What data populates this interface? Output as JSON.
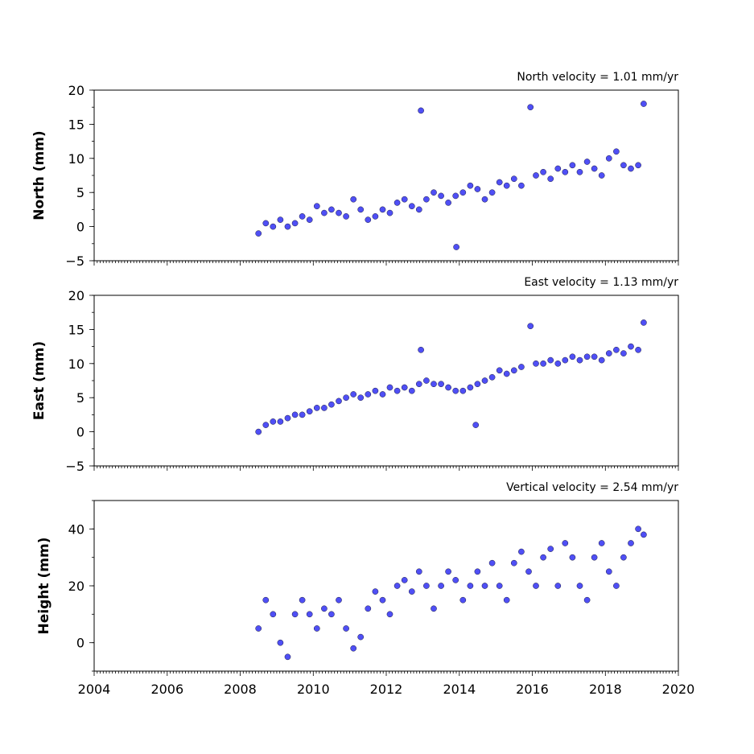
{
  "chart_data": [
    {
      "type": "scatter",
      "title": "North velocity = 1.01 mm/yr",
      "ylabel": "North (mm)",
      "xlim": [
        2004,
        2020
      ],
      "ylim": [
        -5,
        20
      ],
      "yticks": [
        -5,
        0,
        5,
        10,
        15,
        20
      ],
      "marker_color": "#4f4ff5",
      "series": [
        {
          "x": [
            2008.5,
            2008.7,
            2008.9,
            2009.1,
            2009.3,
            2009.5,
            2009.7,
            2009.9,
            2010.1,
            2010.3,
            2010.5,
            2010.7,
            2010.9,
            2011.1,
            2011.3,
            2011.5,
            2011.7,
            2011.9,
            2012.1,
            2012.3,
            2012.5,
            2012.7,
            2012.9,
            2012.95,
            2013.1,
            2013.3,
            2013.5,
            2013.7,
            2013.9,
            2013.92,
            2014.1,
            2014.3,
            2014.5,
            2014.7,
            2014.9,
            2015.1,
            2015.3,
            2015.5,
            2015.7,
            2015.95,
            2016.1,
            2016.3,
            2016.5,
            2016.7,
            2016.9,
            2017.1,
            2017.3,
            2017.5,
            2017.7,
            2017.9,
            2018.1,
            2018.3,
            2018.5,
            2018.7,
            2018.9,
            2019.05
          ],
          "y": [
            -1.0,
            0.5,
            0.0,
            1.0,
            0.0,
            0.5,
            1.5,
            1.0,
            3.0,
            2.0,
            2.5,
            2.0,
            1.5,
            4.0,
            2.5,
            1.0,
            1.5,
            2.5,
            2.0,
            3.5,
            4.0,
            3.0,
            2.5,
            17.0,
            4.0,
            5.0,
            4.5,
            3.5,
            4.5,
            -3.0,
            5.0,
            6.0,
            5.5,
            4.0,
            5.0,
            6.5,
            6.0,
            7.0,
            6.0,
            17.5,
            7.5,
            8.0,
            7.0,
            8.5,
            8.0,
            9.0,
            8.0,
            9.5,
            8.5,
            7.5,
            10.0,
            11.0,
            9.0,
            8.5,
            9.0,
            18.0
          ]
        }
      ]
    },
    {
      "type": "scatter",
      "title": "East velocity = 1.13 mm/yr",
      "ylabel": "East (mm)",
      "xlim": [
        2004,
        2020
      ],
      "ylim": [
        -5,
        20
      ],
      "yticks": [
        -5,
        0,
        5,
        10,
        15,
        20
      ],
      "marker_color": "#4f4ff5",
      "series": [
        {
          "x": [
            2008.5,
            2008.7,
            2008.9,
            2009.1,
            2009.3,
            2009.5,
            2009.7,
            2009.9,
            2010.1,
            2010.3,
            2010.5,
            2010.7,
            2010.9,
            2011.1,
            2011.3,
            2011.5,
            2011.7,
            2011.9,
            2012.1,
            2012.3,
            2012.5,
            2012.7,
            2012.9,
            2012.95,
            2013.1,
            2013.3,
            2013.5,
            2013.7,
            2013.9,
            2014.1,
            2014.3,
            2014.45,
            2014.5,
            2014.7,
            2014.9,
            2015.1,
            2015.3,
            2015.5,
            2015.7,
            2015.95,
            2016.1,
            2016.3,
            2016.5,
            2016.7,
            2016.9,
            2017.1,
            2017.3,
            2017.5,
            2017.7,
            2017.9,
            2018.1,
            2018.3,
            2018.5,
            2018.7,
            2018.9,
            2019.05
          ],
          "y": [
            0.0,
            1.0,
            1.5,
            1.5,
            2.0,
            2.5,
            2.5,
            3.0,
            3.5,
            3.5,
            4.0,
            4.5,
            5.0,
            5.5,
            5.0,
            5.5,
            6.0,
            5.5,
            6.5,
            6.0,
            6.5,
            6.0,
            7.0,
            12.0,
            7.5,
            7.0,
            7.0,
            6.5,
            6.0,
            6.0,
            6.5,
            1.0,
            7.0,
            7.5,
            8.0,
            9.0,
            8.5,
            9.0,
            9.5,
            15.5,
            10.0,
            10.0,
            10.5,
            10.0,
            10.5,
            11.0,
            10.5,
            11.0,
            11.0,
            10.5,
            11.5,
            12.0,
            11.5,
            12.5,
            12.0,
            16.0
          ]
        }
      ]
    },
    {
      "type": "scatter",
      "title": "Vertical velocity = 2.54 mm/yr",
      "ylabel": "Height (mm)",
      "xlim": [
        2004,
        2020
      ],
      "ylim": [
        -10,
        50
      ],
      "yticks": [
        0,
        20,
        40
      ],
      "xticks": [
        2004,
        2006,
        2008,
        2010,
        2012,
        2014,
        2016,
        2018,
        2020
      ],
      "marker_color": "#4f4ff5",
      "series": [
        {
          "x": [
            2008.5,
            2008.7,
            2008.9,
            2009.1,
            2009.3,
            2009.5,
            2009.7,
            2009.9,
            2010.1,
            2010.3,
            2010.5,
            2010.7,
            2010.9,
            2011.1,
            2011.3,
            2011.5,
            2011.7,
            2011.9,
            2012.1,
            2012.3,
            2012.5,
            2012.7,
            2012.9,
            2013.1,
            2013.3,
            2013.5,
            2013.7,
            2013.9,
            2014.1,
            2014.3,
            2014.5,
            2014.7,
            2014.9,
            2015.1,
            2015.3,
            2015.5,
            2015.7,
            2015.9,
            2016.1,
            2016.3,
            2016.5,
            2016.7,
            2016.9,
            2017.1,
            2017.3,
            2017.5,
            2017.7,
            2017.9,
            2018.1,
            2018.3,
            2018.5,
            2018.7,
            2018.9,
            2019.05
          ],
          "y": [
            5.0,
            15.0,
            10.0,
            0.0,
            -5.0,
            10.0,
            15.0,
            10.0,
            5.0,
            12.0,
            10.0,
            15.0,
            5.0,
            -2.0,
            2.0,
            12.0,
            18.0,
            15.0,
            10.0,
            20.0,
            22.0,
            18.0,
            25.0,
            20.0,
            12.0,
            20.0,
            25.0,
            22.0,
            15.0,
            20.0,
            25.0,
            20.0,
            28.0,
            20.0,
            15.0,
            28.0,
            32.0,
            25.0,
            20.0,
            30.0,
            33.0,
            20.0,
            35.0,
            30.0,
            20.0,
            15.0,
            30.0,
            35.0,
            25.0,
            20.0,
            30.0,
            35.0,
            40.0,
            38.0
          ]
        }
      ]
    }
  ]
}
